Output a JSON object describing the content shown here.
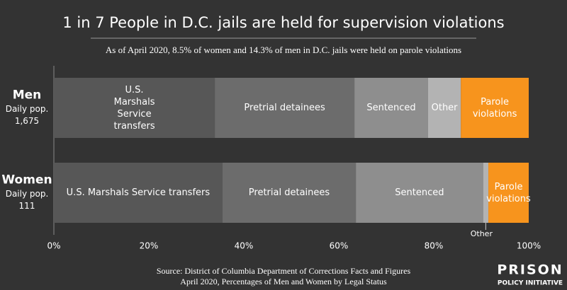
{
  "chart_data": {
    "type": "stacked-bar-horizontal",
    "title": "1 in 7 People in D.C. jails are held for supervision violations",
    "subtitle": "As of April 2020, 8.5% of women and 14.3% of men in D.C. jails were held on parole violations",
    "categories": [
      "Men",
      "Women"
    ],
    "population_caption": "Daily pop.",
    "populations": [
      "1,675",
      "111"
    ],
    "series": [
      {
        "name": "U.S. Marshals Service transfers",
        "color": "#575757",
        "values": [
          33.9,
          35.5
        ]
      },
      {
        "name": "Pretrial detainees",
        "color": "#6c6c6c",
        "values": [
          29.4,
          28.1
        ]
      },
      {
        "name": "Sentenced",
        "color": "#8e8e8e",
        "values": [
          15.5,
          26.8
        ]
      },
      {
        "name": "Other",
        "color": "#b3b3b3",
        "values": [
          6.9,
          1.1
        ]
      },
      {
        "name": "Parole violations",
        "color": "#f7941d",
        "values": [
          14.3,
          8.5
        ]
      }
    ],
    "xlim": [
      0,
      100
    ],
    "xticks": [
      {
        "value": 0,
        "label": "0%"
      },
      {
        "value": 20,
        "label": "20%"
      },
      {
        "value": 40,
        "label": "40%"
      },
      {
        "value": 60,
        "label": "60%"
      },
      {
        "value": 80,
        "label": "80%"
      },
      {
        "value": 100,
        "label": "100%"
      }
    ],
    "source": [
      "Source: District of Columbia Department of Corrections Facts and Figures",
      "April 2020, Percentages of Men and Women by Legal Status"
    ],
    "logo": [
      "PRISON",
      "POLICY INITIATIVE"
    ]
  }
}
